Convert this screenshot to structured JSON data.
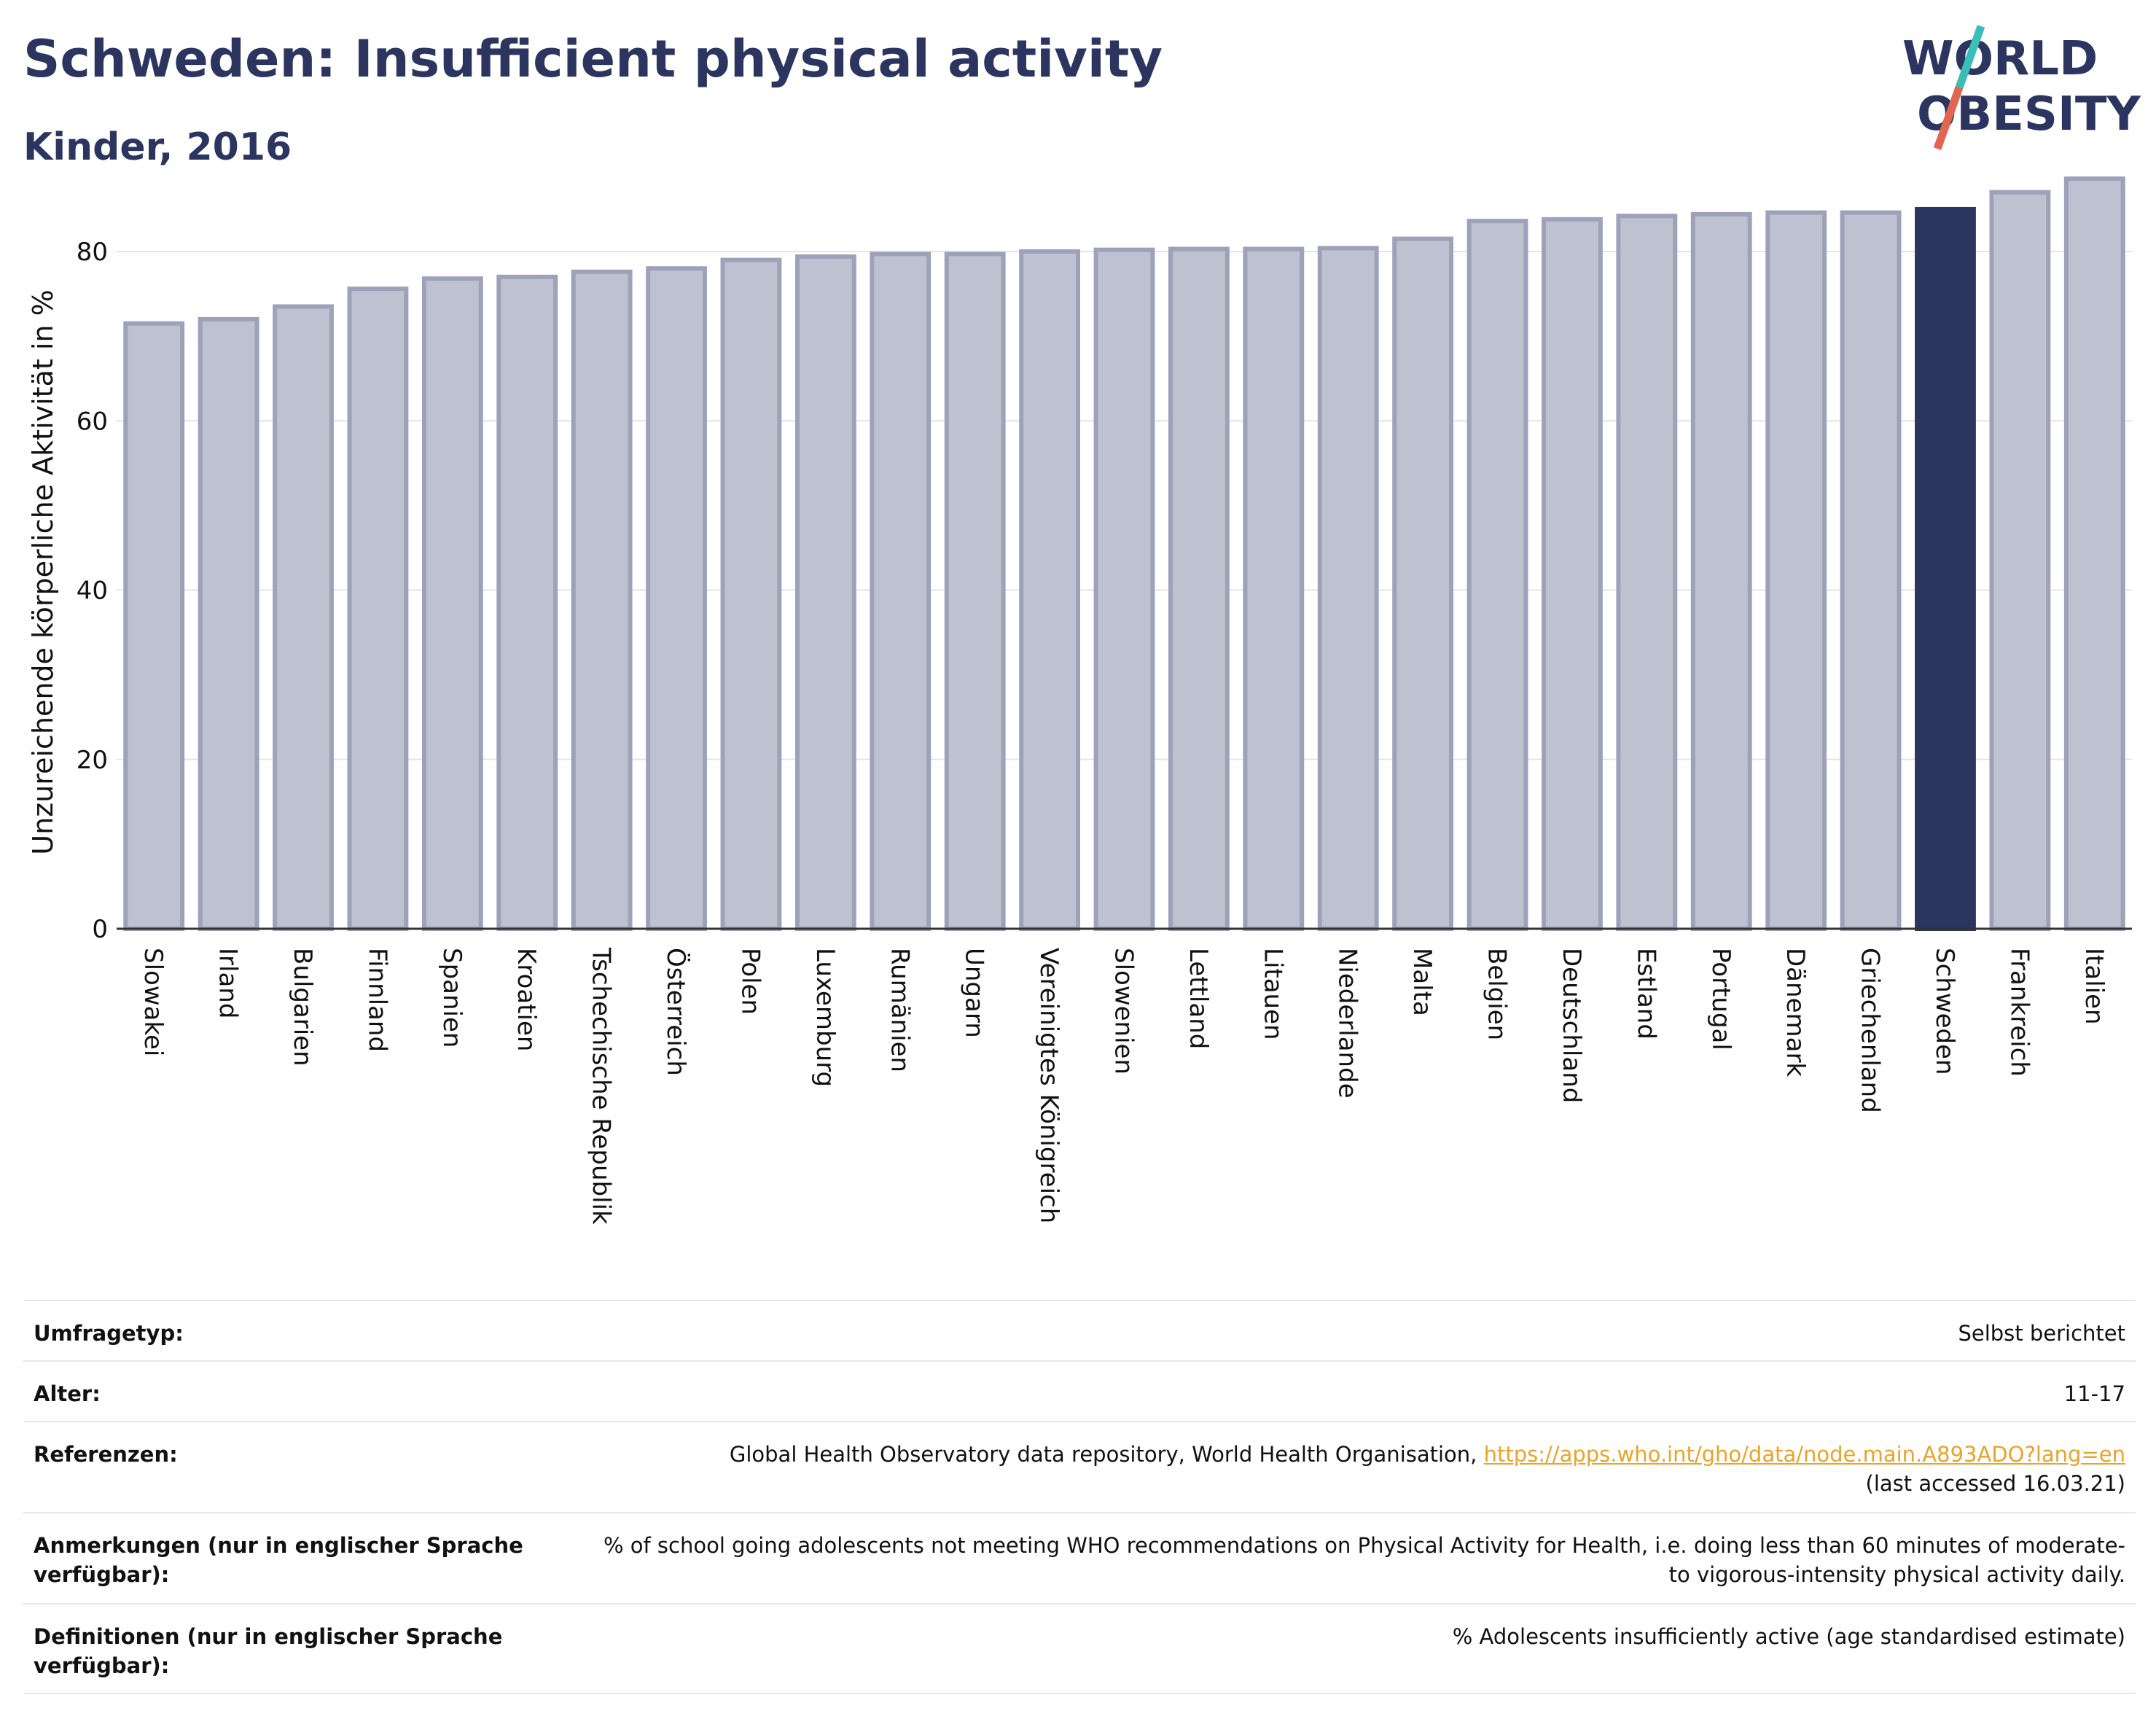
{
  "header": {
    "title": "Schweden: Insufficient physical activity",
    "subtitle": "Kinder, 2016"
  },
  "logo": {
    "line1": "WORLD",
    "line2": "OBESITY",
    "colors": {
      "text": "#2b3560",
      "slash_teal": "#3bbdb8",
      "slash_red": "#e2654f"
    }
  },
  "chart_data": {
    "type": "bar",
    "ylabel": "Unzureichende körperliche Aktivität in %",
    "xlabel": "",
    "ylim": [
      0,
      90
    ],
    "yticks": [
      0,
      20,
      40,
      60,
      80
    ],
    "grid": true,
    "highlight": "Schweden",
    "colors": {
      "bar": "#bec1d0",
      "bar_border": "#9da2ba",
      "highlight": "#2b3560"
    },
    "categories": [
      "Slowakei",
      "Irland",
      "Bulgarien",
      "Finnland",
      "Spanien",
      "Kroatien",
      "Tschechische Republik",
      "Österreich",
      "Polen",
      "Luxemburg",
      "Rumänien",
      "Ungarn",
      "Vereinigtes Königreich",
      "Slowenien",
      "Lettland",
      "Litauen",
      "Niederlande",
      "Malta",
      "Belgien",
      "Deutschland",
      "Estland",
      "Portugal",
      "Dänemark",
      "Griechenland",
      "Schweden",
      "Frankreich",
      "Italien"
    ],
    "values": [
      71.5,
      72.0,
      73.5,
      75.6,
      76.8,
      77.0,
      77.6,
      78.0,
      79.0,
      79.4,
      79.7,
      79.7,
      80.0,
      80.2,
      80.3,
      80.3,
      80.4,
      81.5,
      83.6,
      83.8,
      84.2,
      84.4,
      84.6,
      84.6,
      85.0,
      87.0,
      88.6
    ]
  },
  "meta": {
    "survey_label": "Umfragetyp:",
    "survey_value": "Selbst berichtet",
    "age_label": "Alter:",
    "age_value": "11-17",
    "refs_label": "Referenzen:",
    "refs_text": "Global Health Observatory data repository, World Health Organisation, ",
    "refs_link": "https://apps.who.int/gho/data/node.main.A893ADO?lang=en",
    "refs_accessed": "(last accessed 16.03.21)",
    "notes_label": "Anmerkungen (nur in englischer Sprache verfügbar):",
    "notes_value": "% of school going adolescents not meeting WHO recommendations on Physical Activity for Health, i.e. doing less than 60 minutes of moderate- to vigorous-intensity physical activity daily.",
    "defs_label": "Definitionen (nur in englischer Sprache verfügbar):",
    "defs_value": "% Adolescents insufficiently active (age standardised estimate)"
  }
}
